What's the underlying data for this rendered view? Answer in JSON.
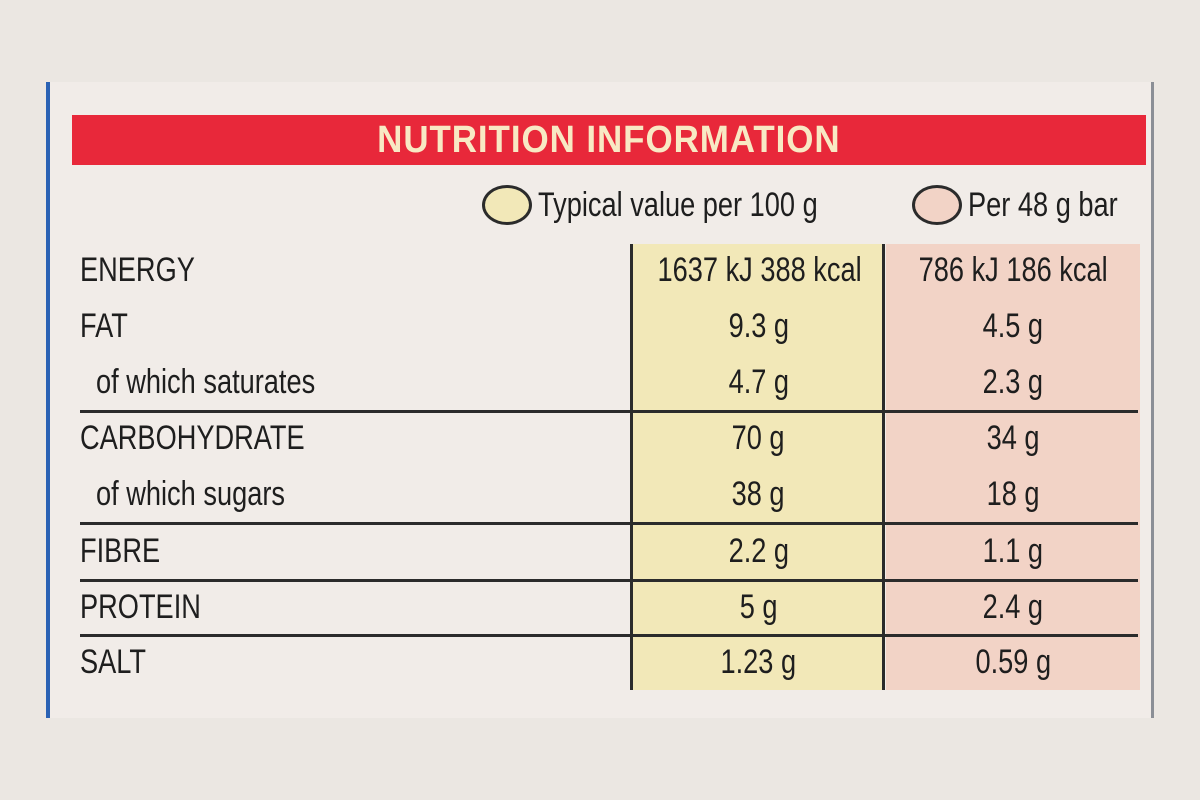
{
  "title": "NUTRITION INFORMATION",
  "columns": {
    "per_100g": "Typical value per 100 g",
    "per_bar": "Per 48 g bar"
  },
  "colors": {
    "title_band": "#e8283a",
    "title_text": "#f8e9c4",
    "col_per_100g": "#f2e8b8",
    "col_per_bar": "#f2d3c6",
    "edge_blue": "#2a62b4"
  },
  "rows": [
    {
      "name": "ENERGY",
      "per_100g": "1637 kJ 388 kcal",
      "per_bar": "786 kJ 186 kcal"
    },
    {
      "name": "FAT",
      "per_100g": "9.3 g",
      "per_bar": "4.5 g"
    },
    {
      "name": "of which saturates",
      "per_100g": "4.7 g",
      "per_bar": "2.3 g"
    },
    {
      "name": "CARBOHYDRATE",
      "per_100g": "70 g",
      "per_bar": "34 g"
    },
    {
      "name": "of which sugars",
      "per_100g": "38 g",
      "per_bar": "18 g"
    },
    {
      "name": "FIBRE",
      "per_100g": "2.2 g",
      "per_bar": "1.1 g"
    },
    {
      "name": "PROTEIN",
      "per_100g": "5 g",
      "per_bar": "2.4 g"
    },
    {
      "name": "SALT",
      "per_100g": "1.23 g",
      "per_bar": "0.59 g"
    }
  ]
}
